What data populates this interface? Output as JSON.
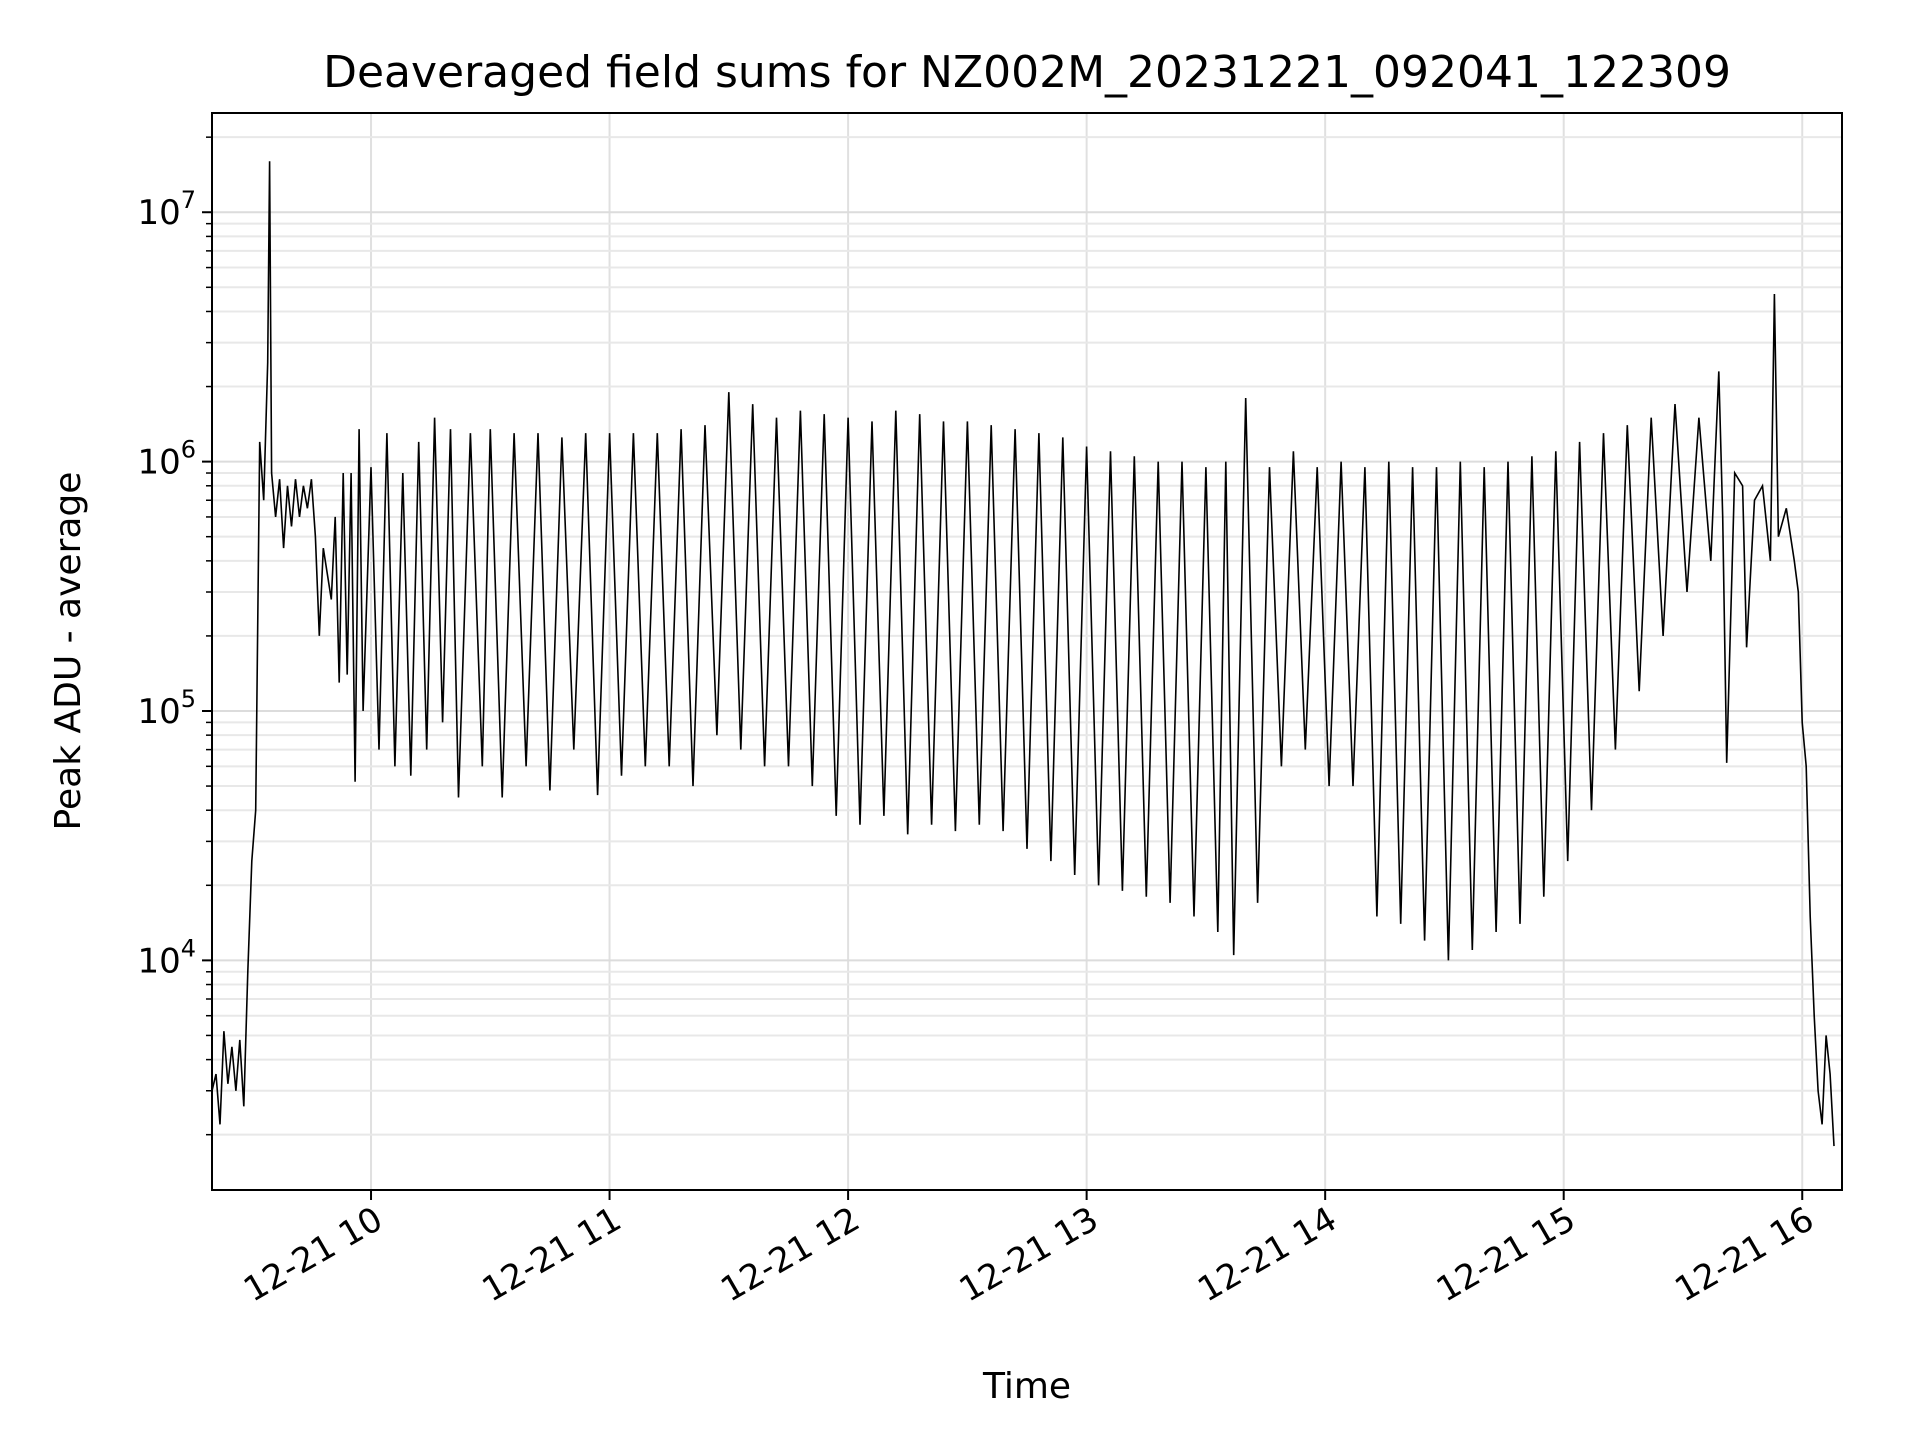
{
  "chart_data": {
    "type": "line",
    "title": "Deaveraged field sums for NZ002M_20231221_092041_122309",
    "xlabel": "Time",
    "ylabel": "Peak ADU - average",
    "xscale": "time",
    "yscale": "log",
    "xlim": [
      "2023-12-21 09:20",
      "2023-12-21 16:10"
    ],
    "ylim": [
      1200,
      25000000
    ],
    "grid": true,
    "legend": "none",
    "line_color": "#000000",
    "x_ticks": [
      {
        "value": "2023-12-21 10:00",
        "label": "12-21 10"
      },
      {
        "value": "2023-12-21 11:00",
        "label": "12-21 11"
      },
      {
        "value": "2023-12-21 12:00",
        "label": "12-21 12"
      },
      {
        "value": "2023-12-21 13:00",
        "label": "12-21 13"
      },
      {
        "value": "2023-12-21 14:00",
        "label": "12-21 14"
      },
      {
        "value": "2023-12-21 15:00",
        "label": "12-21 15"
      },
      {
        "value": "2023-12-21 16:00",
        "label": "12-21 16"
      }
    ],
    "y_ticks": [
      {
        "value": 10000,
        "base": "10",
        "exp": "4"
      },
      {
        "value": 100000,
        "base": "10",
        "exp": "5"
      },
      {
        "value": 1000000,
        "base": "10",
        "exp": "6"
      },
      {
        "value": 10000000,
        "base": "10",
        "exp": "7"
      }
    ],
    "series": [
      {
        "points": [
          [
            "09:20",
            3000
          ],
          [
            "09:21",
            3500
          ],
          [
            "09:22",
            2200
          ],
          [
            "09:23",
            5200
          ],
          [
            "09:24",
            3200
          ],
          [
            "09:25",
            4500
          ],
          [
            "09:26",
            3000
          ],
          [
            "09:27",
            4800
          ],
          [
            "09:28",
            2600
          ],
          [
            "09:29",
            9000
          ],
          [
            "09:30",
            25000
          ],
          [
            "09:31",
            40000
          ],
          [
            "09:32",
            1200000
          ],
          [
            "09:33",
            700000
          ],
          [
            "09:34",
            2500000
          ],
          [
            "09:34.5",
            16000000
          ],
          [
            "09:35",
            900000
          ],
          [
            "09:36",
            600000
          ],
          [
            "09:37",
            850000
          ],
          [
            "09:38",
            450000
          ],
          [
            "09:39",
            800000
          ],
          [
            "09:40",
            550000
          ],
          [
            "09:41",
            850000
          ],
          [
            "09:42",
            600000
          ],
          [
            "09:43",
            800000
          ],
          [
            "09:44",
            650000
          ],
          [
            "09:45",
            850000
          ],
          [
            "09:46",
            500000
          ],
          [
            "09:47",
            200000
          ],
          [
            "09:48",
            450000
          ],
          [
            "09:50",
            280000
          ],
          [
            "09:51",
            600000
          ],
          [
            "09:52",
            130000
          ],
          [
            "09:53",
            900000
          ],
          [
            "09:54",
            140000
          ],
          [
            "09:55",
            900000
          ],
          [
            "09:56",
            52000
          ],
          [
            "09:57",
            1350000
          ],
          [
            "09:58",
            100000
          ],
          [
            "10:00",
            950000
          ],
          [
            "10:02",
            70000
          ],
          [
            "10:04",
            1300000
          ],
          [
            "10:06",
            60000
          ],
          [
            "10:08",
            900000
          ],
          [
            "10:10",
            55000
          ],
          [
            "10:12",
            1200000
          ],
          [
            "10:14",
            70000
          ],
          [
            "10:16",
            1500000
          ],
          [
            "10:18",
            90000
          ],
          [
            "10:20",
            1350000
          ],
          [
            "10:22",
            45000
          ],
          [
            "10:25",
            1300000
          ],
          [
            "10:28",
            60000
          ],
          [
            "10:30",
            1350000
          ],
          [
            "10:33",
            45000
          ],
          [
            "10:36",
            1300000
          ],
          [
            "10:39",
            60000
          ],
          [
            "10:42",
            1300000
          ],
          [
            "10:45",
            48000
          ],
          [
            "10:48",
            1250000
          ],
          [
            "10:51",
            70000
          ],
          [
            "10:54",
            1300000
          ],
          [
            "10:57",
            46000
          ],
          [
            "11:00",
            1300000
          ],
          [
            "11:03",
            55000
          ],
          [
            "11:06",
            1300000
          ],
          [
            "11:09",
            60000
          ],
          [
            "11:12",
            1300000
          ],
          [
            "11:15",
            60000
          ],
          [
            "11:18",
            1350000
          ],
          [
            "11:21",
            50000
          ],
          [
            "11:24",
            1400000
          ],
          [
            "11:27",
            80000
          ],
          [
            "11:30",
            1900000
          ],
          [
            "11:33",
            70000
          ],
          [
            "11:36",
            1700000
          ],
          [
            "11:39",
            60000
          ],
          [
            "11:42",
            1500000
          ],
          [
            "11:45",
            60000
          ],
          [
            "11:48",
            1600000
          ],
          [
            "11:51",
            50000
          ],
          [
            "11:54",
            1550000
          ],
          [
            "11:57",
            38000
          ],
          [
            "12:00",
            1500000
          ],
          [
            "12:03",
            35000
          ],
          [
            "12:06",
            1450000
          ],
          [
            "12:09",
            38000
          ],
          [
            "12:12",
            1600000
          ],
          [
            "12:15",
            32000
          ],
          [
            "12:18",
            1550000
          ],
          [
            "12:21",
            35000
          ],
          [
            "12:24",
            1450000
          ],
          [
            "12:27",
            33000
          ],
          [
            "12:30",
            1450000
          ],
          [
            "12:33",
            35000
          ],
          [
            "12:36",
            1400000
          ],
          [
            "12:39",
            33000
          ],
          [
            "12:42",
            1350000
          ],
          [
            "12:45",
            28000
          ],
          [
            "12:48",
            1300000
          ],
          [
            "12:51",
            25000
          ],
          [
            "12:54",
            1250000
          ],
          [
            "12:57",
            22000
          ],
          [
            "13:00",
            1150000
          ],
          [
            "13:03",
            20000
          ],
          [
            "13:06",
            1100000
          ],
          [
            "13:09",
            19000
          ],
          [
            "13:12",
            1050000
          ],
          [
            "13:15",
            18000
          ],
          [
            "13:18",
            1000000
          ],
          [
            "13:21",
            17000
          ],
          [
            "13:24",
            1000000
          ],
          [
            "13:27",
            15000
          ],
          [
            "13:30",
            950000
          ],
          [
            "13:33",
            13000
          ],
          [
            "13:35",
            1000000
          ],
          [
            "13:37",
            10500
          ],
          [
            "13:40",
            1800000
          ],
          [
            "13:43",
            17000
          ],
          [
            "13:46",
            950000
          ],
          [
            "13:49",
            60000
          ],
          [
            "13:52",
            1100000
          ],
          [
            "13:55",
            70000
          ],
          [
            "13:58",
            950000
          ],
          [
            "14:01",
            50000
          ],
          [
            "14:04",
            1000000
          ],
          [
            "14:07",
            50000
          ],
          [
            "14:10",
            950000
          ],
          [
            "14:13",
            15000
          ],
          [
            "14:16",
            1000000
          ],
          [
            "14:19",
            14000
          ],
          [
            "14:22",
            950000
          ],
          [
            "14:25",
            12000
          ],
          [
            "14:28",
            950000
          ],
          [
            "14:31",
            10000
          ],
          [
            "14:34",
            1000000
          ],
          [
            "14:37",
            11000
          ],
          [
            "14:40",
            950000
          ],
          [
            "14:43",
            13000
          ],
          [
            "14:46",
            1000000
          ],
          [
            "14:49",
            14000
          ],
          [
            "14:52",
            1050000
          ],
          [
            "14:55",
            18000
          ],
          [
            "14:58",
            1100000
          ],
          [
            "15:01",
            25000
          ],
          [
            "15:04",
            1200000
          ],
          [
            "15:07",
            40000
          ],
          [
            "15:10",
            1300000
          ],
          [
            "15:13",
            70000
          ],
          [
            "15:16",
            1400000
          ],
          [
            "15:19",
            120000
          ],
          [
            "15:22",
            1500000
          ],
          [
            "15:25",
            200000
          ],
          [
            "15:28",
            1700000
          ],
          [
            "15:31",
            300000
          ],
          [
            "15:34",
            1500000
          ],
          [
            "15:37",
            400000
          ],
          [
            "15:39",
            2300000
          ],
          [
            "15:40",
            600000
          ],
          [
            "15:41",
            62000
          ],
          [
            "15:43",
            900000
          ],
          [
            "15:45",
            800000
          ],
          [
            "15:46",
            180000
          ],
          [
            "15:48",
            700000
          ],
          [
            "15:50",
            800000
          ],
          [
            "15:52",
            400000
          ],
          [
            "15:53",
            4700000
          ],
          [
            "15:54",
            500000
          ],
          [
            "15:56",
            650000
          ],
          [
            "15:58",
            400000
          ],
          [
            "15:59",
            300000
          ],
          [
            "16:00",
            90000
          ],
          [
            "16:01",
            60000
          ],
          [
            "16:02",
            15000
          ],
          [
            "16:03",
            6000
          ],
          [
            "16:04",
            3000
          ],
          [
            "16:05",
            2200
          ],
          [
            "16:06",
            5000
          ],
          [
            "16:07",
            3500
          ],
          [
            "16:08",
            1800
          ]
        ]
      }
    ]
  }
}
